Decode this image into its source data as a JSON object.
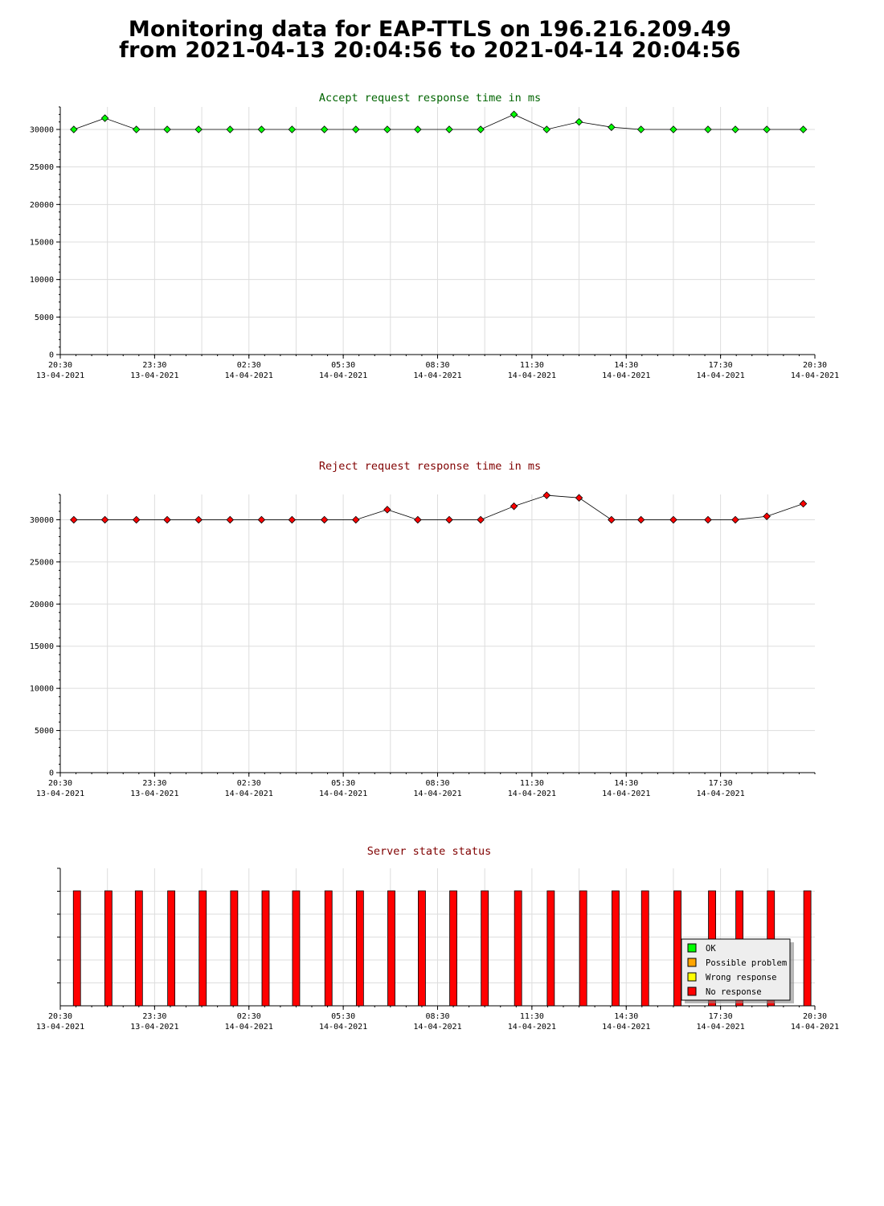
{
  "page": {
    "title_line1": "Monitoring data for EAP-TTLS on 196.216.209.49",
    "title_line2": "from 2021-04-13 20:04:56 to 2021-04-14 20:04:56"
  },
  "colors": {
    "accept_marker": "#00ff00",
    "accept_title": "#006400",
    "reject_marker": "#ff0000",
    "reject_title": "#800000",
    "status_bar": "#ff0000",
    "grid": "#dddddd",
    "legend_ok": "#00ff00",
    "legend_possible": "#ffa500",
    "legend_wrong": "#ffff00",
    "legend_none": "#ff0000"
  },
  "chart_data": [
    {
      "type": "line",
      "title": "Accept request response time in ms",
      "xlim": [
        0,
        24
      ],
      "ylim": [
        0,
        33000
      ],
      "y_ticks": [
        0,
        5000,
        10000,
        15000,
        20000,
        25000,
        30000
      ],
      "x_ticks": [
        {
          "x": 0,
          "time": "20:30",
          "date": "13-04-2021"
        },
        {
          "x": 3,
          "time": "23:30",
          "date": "13-04-2021"
        },
        {
          "x": 6,
          "time": "02:30",
          "date": "14-04-2021"
        },
        {
          "x": 9,
          "time": "05:30",
          "date": "14-04-2021"
        },
        {
          "x": 12,
          "time": "08:30",
          "date": "14-04-2021"
        },
        {
          "x": 15,
          "time": "11:30",
          "date": "14-04-2021"
        },
        {
          "x": 18,
          "time": "14:30",
          "date": "14-04-2021"
        },
        {
          "x": 21,
          "time": "17:30",
          "date": "14-04-2021"
        },
        {
          "x": 24,
          "time": "20:30",
          "date": "14-04-2021"
        }
      ],
      "grid": true,
      "series": [
        {
          "x": [
            0.43,
            1.42,
            2.42,
            3.4,
            4.4,
            5.4,
            6.4,
            7.37,
            8.4,
            9.4,
            10.4,
            11.37,
            12.37,
            13.37,
            14.43,
            15.47,
            16.5,
            17.53,
            18.47,
            19.5,
            20.6,
            21.47,
            22.47,
            23.63
          ],
          "values": [
            30000,
            31500,
            30000,
            30000,
            30000,
            30000,
            30000,
            30000,
            30000,
            30000,
            30000,
            30000,
            30000,
            30000,
            32000,
            30000,
            31000,
            30300,
            30000,
            30000,
            30000,
            30000,
            30000,
            30000
          ]
        }
      ]
    },
    {
      "type": "line",
      "title": "Reject request response time in ms",
      "xlim": [
        0,
        24
      ],
      "ylim": [
        0,
        33000
      ],
      "y_ticks": [
        0,
        5000,
        10000,
        15000,
        20000,
        25000,
        30000
      ],
      "x_ticks": [
        {
          "x": 0,
          "time": "20:30",
          "date": "13-04-2021"
        },
        {
          "x": 3,
          "time": "23:30",
          "date": "13-04-2021"
        },
        {
          "x": 6,
          "time": "02:30",
          "date": "14-04-2021"
        },
        {
          "x": 9,
          "time": "05:30",
          "date": "14-04-2021"
        },
        {
          "x": 12,
          "time": "08:30",
          "date": "14-04-2021"
        },
        {
          "x": 15,
          "time": "11:30",
          "date": "14-04-2021"
        },
        {
          "x": 18,
          "time": "14:30",
          "date": "14-04-2021"
        },
        {
          "x": 21,
          "time": "17:30",
          "date": "14-04-2021"
        }
      ],
      "grid": true,
      "series": [
        {
          "x": [
            0.43,
            1.42,
            2.42,
            3.4,
            4.4,
            5.4,
            6.4,
            7.37,
            8.4,
            9.4,
            10.4,
            11.37,
            12.37,
            13.37,
            14.43,
            15.47,
            16.5,
            17.53,
            18.47,
            19.5,
            20.6,
            21.47,
            22.47,
            23.63
          ],
          "values": [
            30000,
            30000,
            30000,
            30000,
            30000,
            30000,
            30000,
            30000,
            30000,
            30000,
            31200,
            30000,
            30000,
            30000,
            31600,
            32900,
            32600,
            30000,
            30000,
            30000,
            30000,
            30000,
            30400,
            31900
          ]
        }
      ]
    },
    {
      "type": "bar",
      "title": "Server state status",
      "xlim": [
        0,
        24
      ],
      "x_ticks": [
        {
          "x": 0,
          "time": "20:30",
          "date": "13-04-2021"
        },
        {
          "x": 3,
          "time": "23:30",
          "date": "13-04-2021"
        },
        {
          "x": 6,
          "time": "02:30",
          "date": "14-04-2021"
        },
        {
          "x": 9,
          "time": "05:30",
          "date": "14-04-2021"
        },
        {
          "x": 12,
          "time": "08:30",
          "date": "14-04-2021"
        },
        {
          "x": 15,
          "time": "11:30",
          "date": "14-04-2021"
        },
        {
          "x": 18,
          "time": "14:30",
          "date": "14-04-2021"
        },
        {
          "x": 21,
          "time": "17:30",
          "date": "14-04-2021"
        },
        {
          "x": 24,
          "time": "20:30",
          "date": "14-04-2021"
        }
      ],
      "grid": true,
      "legend_position": "bottom-right",
      "legend": [
        "OK",
        "Possible problem",
        "Wrong response",
        "No response"
      ],
      "series": [
        {
          "name": "No response",
          "x": [
            0.53,
            1.53,
            2.5,
            3.53,
            4.53,
            5.53,
            6.53,
            7.5,
            8.53,
            9.53,
            10.53,
            11.5,
            12.5,
            13.5,
            14.56,
            15.6,
            16.63,
            17.66,
            18.6,
            19.63,
            20.73,
            21.6,
            22.6,
            23.76
          ],
          "values": [
            1,
            1,
            1,
            1,
            1,
            1,
            1,
            1,
            1,
            1,
            1,
            1,
            1,
            1,
            1,
            1,
            1,
            1,
            1,
            1,
            1,
            1,
            1,
            1
          ]
        }
      ]
    }
  ]
}
